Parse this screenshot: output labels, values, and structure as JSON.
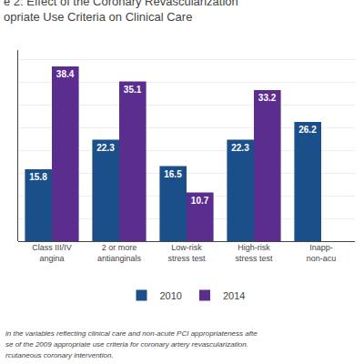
{
  "chart_data": {
    "type": "bar",
    "title": "e 2: Effect of the Coronary Revascularization\nopriate Use Criteria on Clinical Care",
    "categories": [
      "Class III/IV\nangina",
      "2 or more\nantianginals",
      "Low-risk\nstress test",
      "High-risk\nstress test",
      "Inapp-\nnon-acu"
    ],
    "series": [
      {
        "name": "2010",
        "color": "#1B4F8A",
        "values": [
          15.8,
          22.3,
          16.5,
          22.3,
          26.2
        ]
      },
      {
        "name": "2014",
        "color": "#5B2D8E",
        "values": [
          38.4,
          35.1,
          10.7,
          33.2,
          0
        ]
      }
    ],
    "ylim": [
      0,
      42
    ],
    "yticks": [
      0,
      5,
      10,
      15,
      20,
      25,
      30,
      35,
      40
    ],
    "grid": true,
    "tick_labels": "x",
    "data_labels": true,
    "legend": "bottom",
    "annotations": [
      "in the variables reflecting clinical care and non-acute PCI appropriateness afte",
      "se of the 2009 appropriate use criteria for coronary artery revascularization.",
      "rcutaneous coronary intervention."
    ]
  }
}
